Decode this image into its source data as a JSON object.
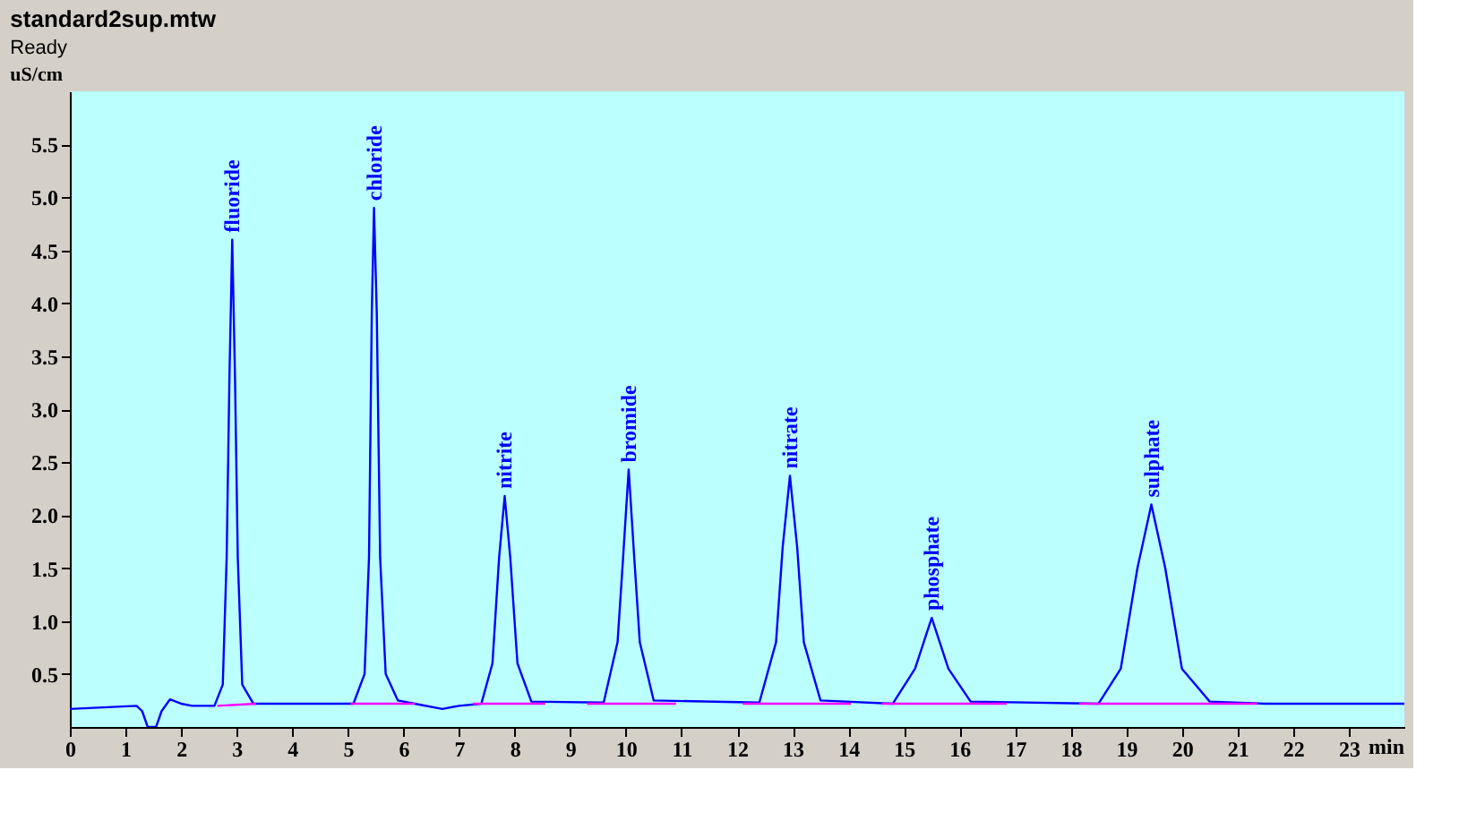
{
  "chart_data": {
    "type": "line",
    "title": "standard2sup.mtw",
    "subtitle": "Ready",
    "xlabel": "min",
    "ylabel": "uS/cm",
    "xlim": [
      0,
      24
    ],
    "ylim": [
      0,
      6.0
    ],
    "xticks": [
      0,
      1,
      2,
      3,
      4,
      5,
      6,
      7,
      8,
      9,
      10,
      11,
      12,
      13,
      14,
      15,
      16,
      17,
      18,
      19,
      20,
      21,
      22,
      23
    ],
    "yticks": [
      0.5,
      {
        "value": 1,
        "label": "1.0"
      },
      1.5,
      {
        "value": 2,
        "label": "2.0"
      },
      2.5,
      {
        "value": 3,
        "label": "3.0"
      },
      3.5,
      {
        "value": 4,
        "label": "4.0"
      },
      4.5,
      {
        "value": 5,
        "label": "5.0"
      },
      5.5
    ],
    "grid": false,
    "marker": "none",
    "line_style": "solid",
    "series": [
      {
        "color": "#0000ff",
        "x": [
          0,
          1.2,
          1.3,
          1.4,
          1.55,
          1.65,
          1.8,
          2.0,
          2.2,
          2.6,
          2.75,
          2.82,
          2.87,
          2.92,
          2.97,
          3.02,
          3.1,
          3.3,
          5.1,
          5.3,
          5.38,
          5.43,
          5.47,
          5.52,
          5.58,
          5.68,
          5.9,
          6.2,
          6.7,
          7.0,
          7.4,
          7.6,
          7.72,
          7.82,
          7.92,
          8.05,
          8.3,
          9.6,
          9.85,
          9.95,
          10.05,
          10.15,
          10.25,
          10.5,
          12.4,
          12.7,
          12.82,
          12.95,
          13.08,
          13.2,
          13.5,
          14.8,
          15.2,
          15.5,
          15.8,
          16.2,
          18.5,
          18.9,
          19.2,
          19.45,
          19.7,
          20.0,
          20.5,
          21.5,
          24
        ],
        "values": [
          0.17,
          0.2,
          0.15,
          0.0,
          0.0,
          0.15,
          0.26,
          0.22,
          0.2,
          0.2,
          0.4,
          1.6,
          3.3,
          4.6,
          3.3,
          1.6,
          0.4,
          0.22,
          0.22,
          0.5,
          1.6,
          3.9,
          4.9,
          3.9,
          1.6,
          0.5,
          0.25,
          0.22,
          0.17,
          0.2,
          0.22,
          0.6,
          1.6,
          2.18,
          1.6,
          0.6,
          0.24,
          0.23,
          0.8,
          1.6,
          2.43,
          1.6,
          0.8,
          0.25,
          0.23,
          0.8,
          1.7,
          2.37,
          1.7,
          0.8,
          0.25,
          0.22,
          0.55,
          1.03,
          0.55,
          0.24,
          0.22,
          0.55,
          1.5,
          2.1,
          1.5,
          0.55,
          0.24,
          0.22,
          0.22
        ]
      },
      {
        "color": "#ff00ff",
        "x": [
          2.65,
          3.35,
          3.36,
          5.05,
          6.2,
          6.21,
          7.25,
          8.55,
          8.56,
          9.3,
          10.9,
          10.91,
          12.1,
          14.05,
          14.06,
          14.6,
          16.85,
          16.86,
          18.15,
          21.35
        ],
        "values": [
          0.2,
          0.22,
          null,
          0.22,
          0.22,
          null,
          0.22,
          0.22,
          null,
          0.22,
          0.22,
          null,
          0.22,
          0.22,
          null,
          0.22,
          0.22,
          null,
          0.22,
          0.22
        ]
      }
    ],
    "annotations": [
      {
        "text": "fluoride",
        "x": 2.92,
        "y": 4.6
      },
      {
        "text": "chloride",
        "x": 5.47,
        "y": 4.9
      },
      {
        "text": "nitrite",
        "x": 7.82,
        "y": 2.18
      },
      {
        "text": "bromide",
        "x": 10.05,
        "y": 2.43
      },
      {
        "text": "nitrate",
        "x": 12.95,
        "y": 2.37
      },
      {
        "text": "phosphate",
        "x": 15.5,
        "y": 1.03
      },
      {
        "text": "sulphate",
        "x": 19.45,
        "y": 2.1
      }
    ]
  }
}
